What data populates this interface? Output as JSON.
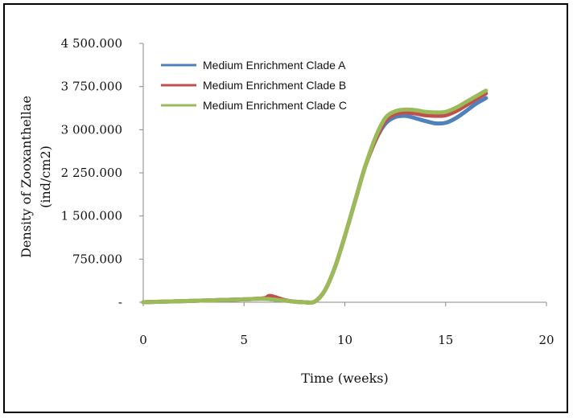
{
  "chart_data": {
    "type": "line",
    "title": "",
    "xlabel": "Time (weeks)",
    "ylabel_line1": "Density of Zooxanthellae",
    "ylabel_line2": "(ind/cm2)",
    "xlim": [
      0,
      20
    ],
    "ylim": [
      0,
      4500
    ],
    "x_ticks": [
      0,
      5,
      10,
      15,
      20
    ],
    "x_tick_labels": [
      "0",
      "5",
      "10",
      "15",
      "20"
    ],
    "y_ticks": [
      0,
      750,
      1500,
      2250,
      3000,
      3750,
      4500
    ],
    "y_tick_labels": [
      "-",
      "750.000",
      "1 500.000",
      "2 250.000",
      "3 000.000",
      "3 750.000",
      "4 500.000"
    ],
    "grid": false,
    "legend_position": "top-left",
    "series": [
      {
        "name": "Medium Enrichment Clade A",
        "color": "#4f81bd",
        "x": [
          0,
          1,
          2,
          3,
          4,
          5,
          6,
          7,
          7.5,
          8,
          8.5,
          9,
          9.5,
          10,
          10.5,
          11,
          11.5,
          12,
          12.5,
          13,
          13.5,
          14,
          14.5,
          15,
          15.5,
          16,
          16.5,
          17
        ],
        "y": [
          0,
          10,
          20,
          30,
          40,
          50,
          60,
          30,
          10,
          0,
          10,
          200,
          600,
          1150,
          1750,
          2350,
          2800,
          3100,
          3220,
          3240,
          3200,
          3150,
          3110,
          3120,
          3200,
          3320,
          3450,
          3550
        ]
      },
      {
        "name": "Medium Enrichment Clade B",
        "color": "#c0504d",
        "x": [
          0,
          1,
          2,
          3,
          4,
          5,
          6,
          6.3,
          7,
          7.5,
          8,
          8.5,
          9,
          9.5,
          10,
          10.5,
          11,
          11.5,
          12,
          12.5,
          13,
          13.5,
          14,
          14.5,
          15,
          15.5,
          16,
          16.5,
          17
        ],
        "y": [
          0,
          10,
          20,
          30,
          40,
          50,
          70,
          110,
          40,
          10,
          0,
          10,
          200,
          600,
          1150,
          1750,
          2350,
          2800,
          3150,
          3270,
          3300,
          3280,
          3250,
          3240,
          3250,
          3320,
          3420,
          3530,
          3630
        ]
      },
      {
        "name": "Medium Enrichment Clade C",
        "color": "#9bbb59",
        "x": [
          0,
          1,
          2,
          3,
          4,
          5,
          6,
          7,
          7.5,
          8,
          8.5,
          9,
          9.5,
          10,
          10.5,
          11,
          11.5,
          12,
          12.5,
          13,
          13.5,
          14,
          14.5,
          15,
          15.5,
          16,
          16.5,
          17
        ],
        "y": [
          0,
          10,
          20,
          30,
          40,
          50,
          60,
          30,
          10,
          0,
          10,
          200,
          600,
          1150,
          1750,
          2350,
          2850,
          3200,
          3320,
          3350,
          3340,
          3310,
          3300,
          3310,
          3380,
          3480,
          3580,
          3680
        ]
      }
    ]
  }
}
